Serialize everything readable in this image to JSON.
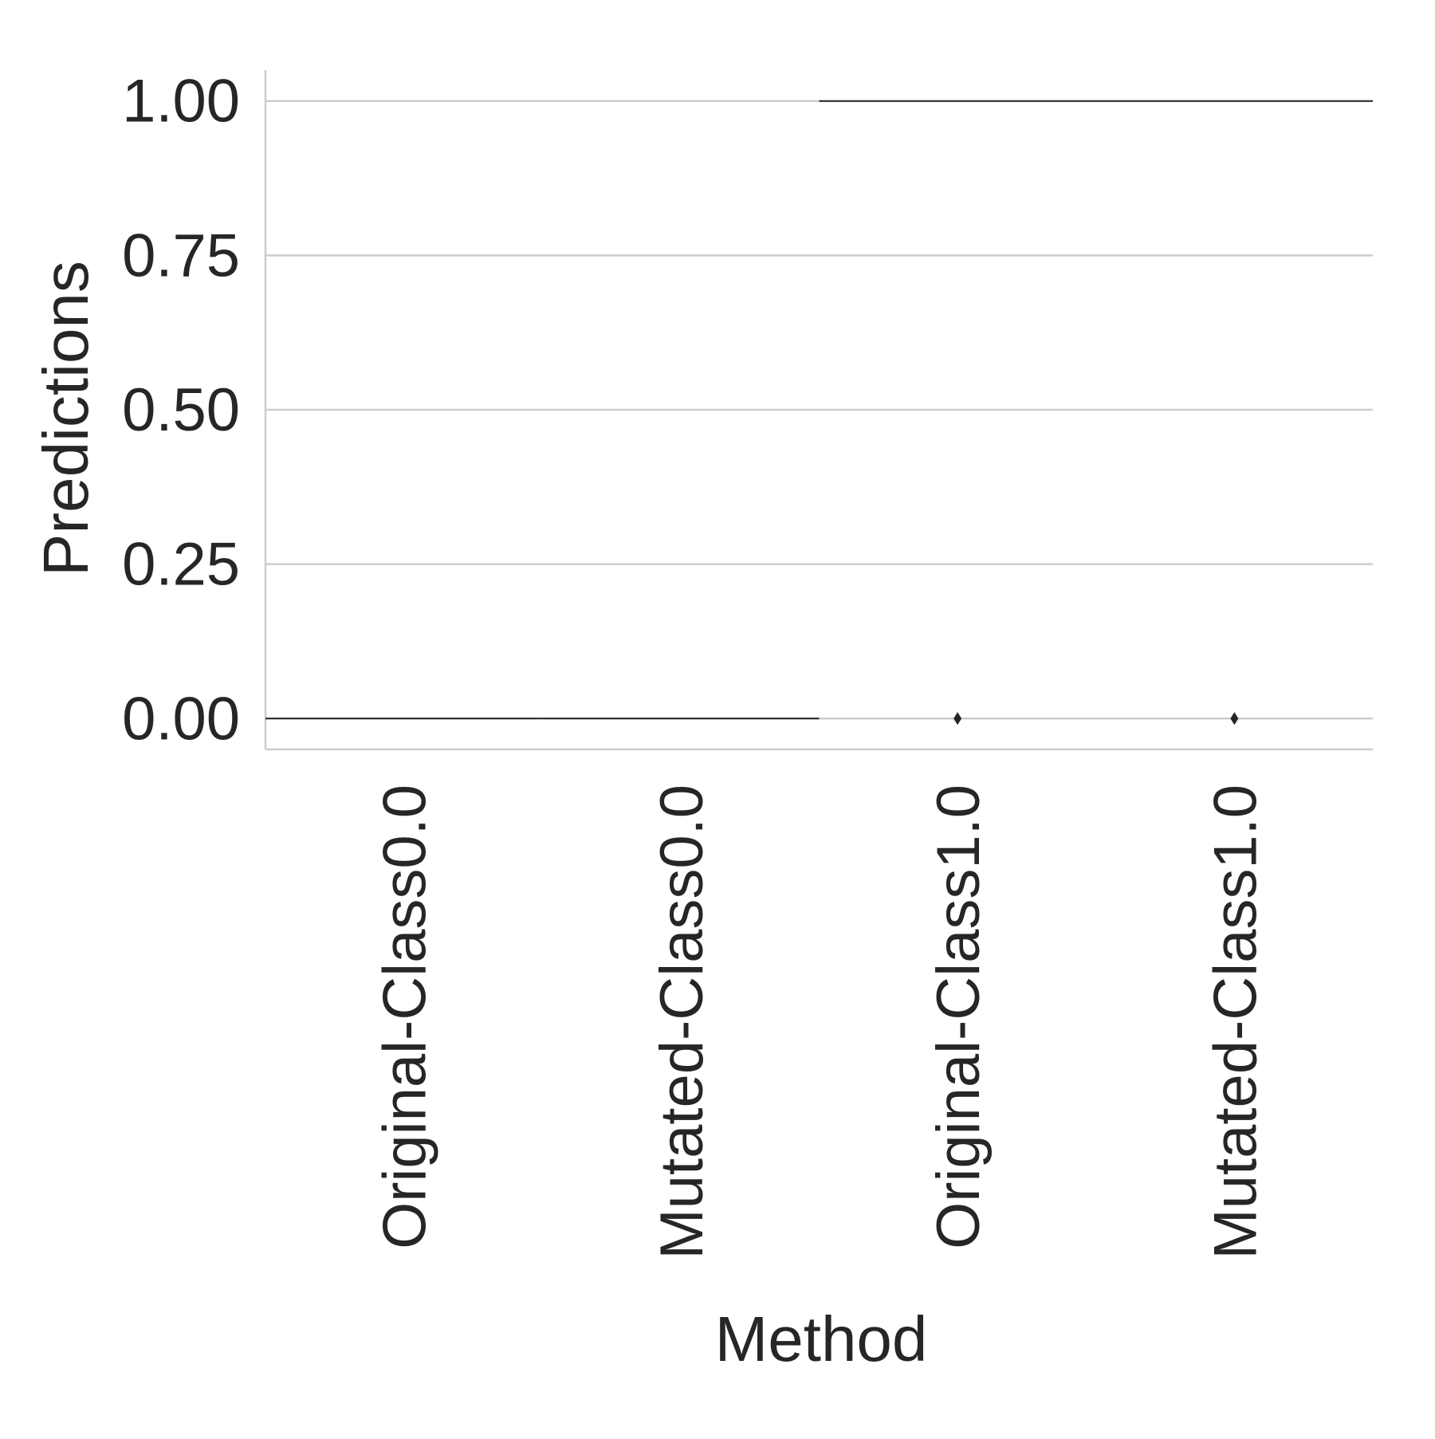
{
  "chart_data": {
    "type": "box",
    "title": "",
    "xlabel": "Method",
    "ylabel": "Predictions",
    "categories": [
      "Original-Class0.0",
      "Mutated-Class0.0",
      "Original-Class1.0",
      "Mutated-Class1.0"
    ],
    "boxes": [
      {
        "category": "Original-Class0.0",
        "median": 0.0,
        "q1": 0.0,
        "q3": 0.0,
        "whisker_low": 0.0,
        "whisker_high": 0.0,
        "outliers": []
      },
      {
        "category": "Mutated-Class0.0",
        "median": 0.0,
        "q1": 0.0,
        "q3": 0.0,
        "whisker_low": 0.0,
        "whisker_high": 0.0,
        "outliers": []
      },
      {
        "category": "Original-Class1.0",
        "median": 1.0,
        "q1": 1.0,
        "q3": 1.0,
        "whisker_low": 1.0,
        "whisker_high": 1.0,
        "outliers": [
          0.0
        ]
      },
      {
        "category": "Mutated-Class1.0",
        "median": 1.0,
        "q1": 1.0,
        "q3": 1.0,
        "whisker_low": 1.0,
        "whisker_high": 1.0,
        "outliers": [
          0.0
        ]
      }
    ],
    "ylim": [
      -0.05,
      1.05
    ],
    "yticks": [
      0.0,
      0.25,
      0.5,
      0.75,
      1.0
    ],
    "ytick_labels": [
      "0.00",
      "0.25",
      "0.50",
      "0.75",
      "1.00"
    ],
    "grid": true,
    "grid_axis": "y",
    "legend": "none",
    "colors": {
      "grid": "#cccccc",
      "spine": "#cccccc",
      "box_line": "#262626",
      "text": "#262626"
    }
  }
}
